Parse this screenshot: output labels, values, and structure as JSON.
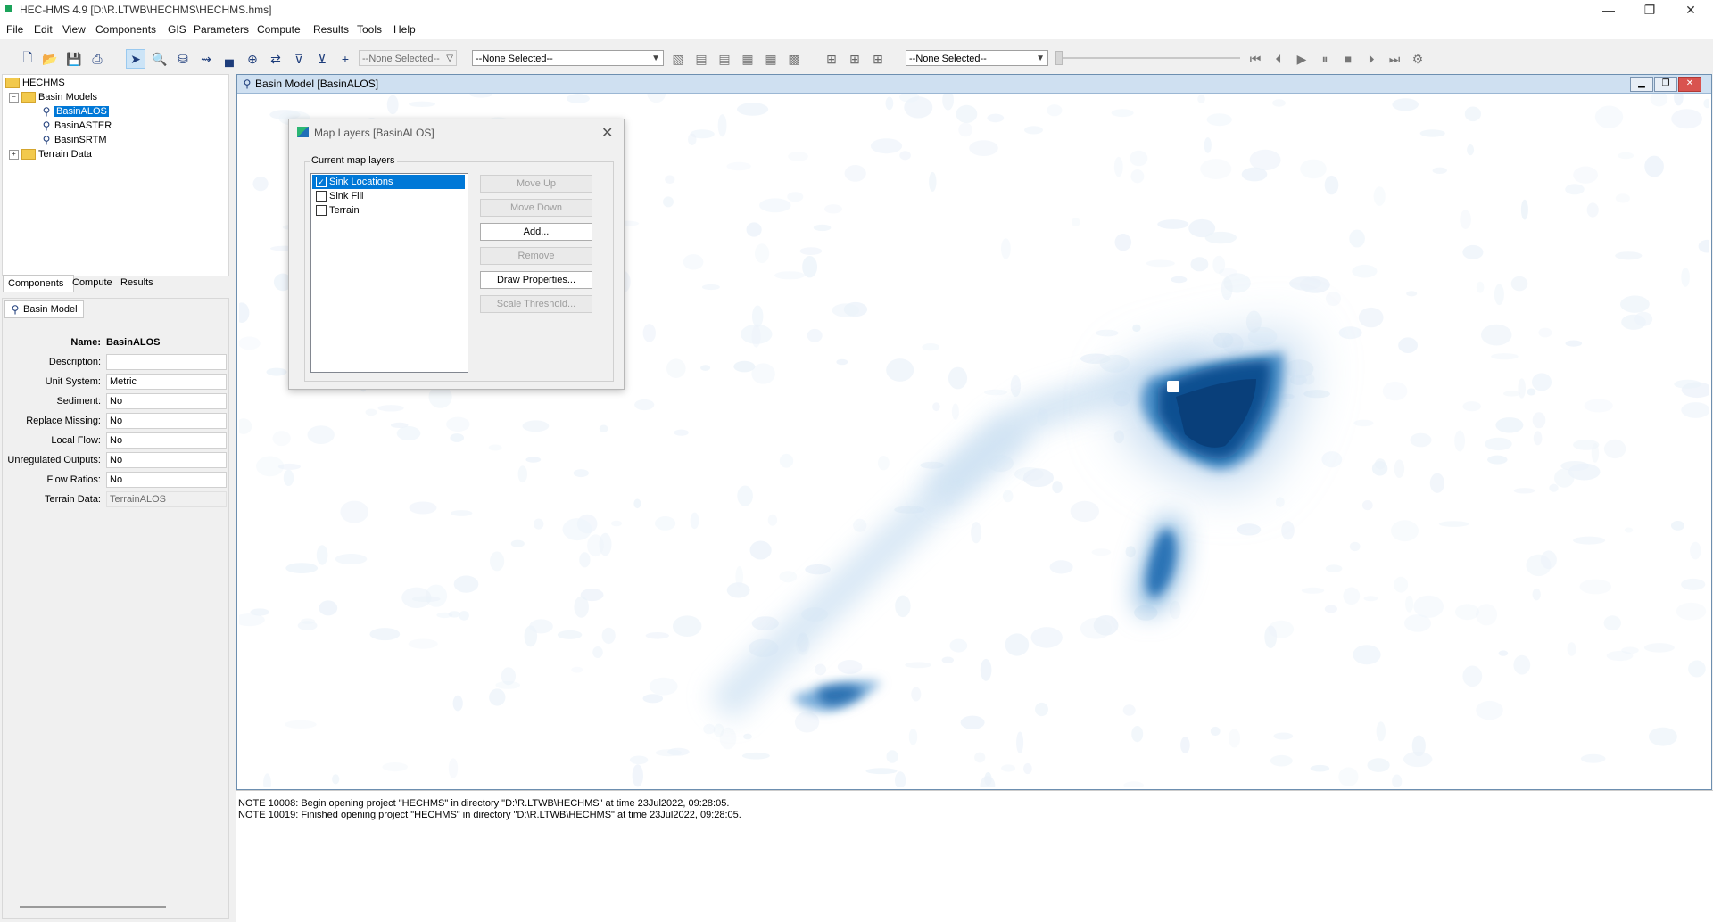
{
  "window": {
    "title": "HEC-HMS 4.9 [D:\\R.LTWB\\HECHMS\\HECHMS.hms]",
    "minimize": "—",
    "restore": "❐",
    "close": "✕"
  },
  "menu": [
    "File",
    "Edit",
    "View",
    "Components",
    "GIS",
    "Parameters",
    "Compute",
    "Results",
    "Tools",
    "Help"
  ],
  "toolbar": {
    "combo1": "--None Selected--",
    "combo2": "--None Selected--",
    "combo3": "--None Selected--"
  },
  "tree": {
    "root": "HECHMS",
    "basin_models": "Basin Models",
    "basins": [
      "BasinALOS",
      "BasinASTER",
      "BasinSRTM"
    ],
    "terrain": "Terrain Data"
  },
  "tabs": [
    "Components",
    "Compute",
    "Results"
  ],
  "props": {
    "subtab": "Basin Model",
    "name_label": "Name:",
    "name_value": "BasinALOS",
    "rows": [
      {
        "label": "Description:",
        "value": ""
      },
      {
        "label": "Unit System:",
        "value": "Metric"
      },
      {
        "label": "Sediment:",
        "value": "No"
      },
      {
        "label": "Replace Missing:",
        "value": "No"
      },
      {
        "label": "Local Flow:",
        "value": "No"
      },
      {
        "label": "Unregulated Outputs:",
        "value": "No"
      },
      {
        "label": "Flow Ratios:",
        "value": "No"
      },
      {
        "label": "Terrain Data:",
        "value": "TerrainALOS"
      }
    ]
  },
  "mapwin": {
    "title": "Basin Model [BasinALOS]"
  },
  "dialog": {
    "title": "Map Layers [BasinALOS]",
    "group": "Current map layers",
    "layers": [
      {
        "label": "Sink Locations",
        "checked": true
      },
      {
        "label": "Sink Fill",
        "checked": false
      },
      {
        "label": "Terrain",
        "checked": false
      }
    ],
    "buttons": [
      "Move Up",
      "Move Down",
      "Add...",
      "Remove",
      "Draw Properties...",
      "Scale Threshold..."
    ]
  },
  "messages": [
    "NOTE 10008:  Begin opening project \"HECHMS\" in directory \"D:\\R.LTWB\\HECHMS\" at time 23Jul2022, 09:28:05.",
    "NOTE 10019:  Finished opening project \"HECHMS\" in directory \"D:\\R.LTWB\\HECHMS\" at time 23Jul2022, 09:28:05."
  ]
}
